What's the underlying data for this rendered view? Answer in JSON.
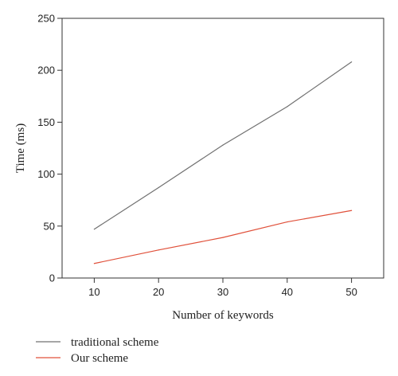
{
  "chart_data": {
    "type": "line",
    "xlabel": "Number of keywords",
    "ylabel": "Time (ms)",
    "x": [
      10,
      20,
      30,
      40,
      50
    ],
    "xlim": [
      5,
      55
    ],
    "ylim": [
      0,
      250
    ],
    "xticks": [
      "10",
      "20",
      "30",
      "40",
      "50"
    ],
    "yticks": [
      "0",
      "50",
      "100",
      "150",
      "200",
      "250"
    ],
    "grid": false,
    "legend_position": "bottom-left, below plot",
    "series": [
      {
        "name": "traditional scheme",
        "color": "#707070",
        "values": [
          47,
          87,
          128,
          165,
          208
        ]
      },
      {
        "name": "Our scheme",
        "color": "#e0503a",
        "values": [
          14,
          27,
          39,
          54,
          65
        ]
      }
    ]
  }
}
